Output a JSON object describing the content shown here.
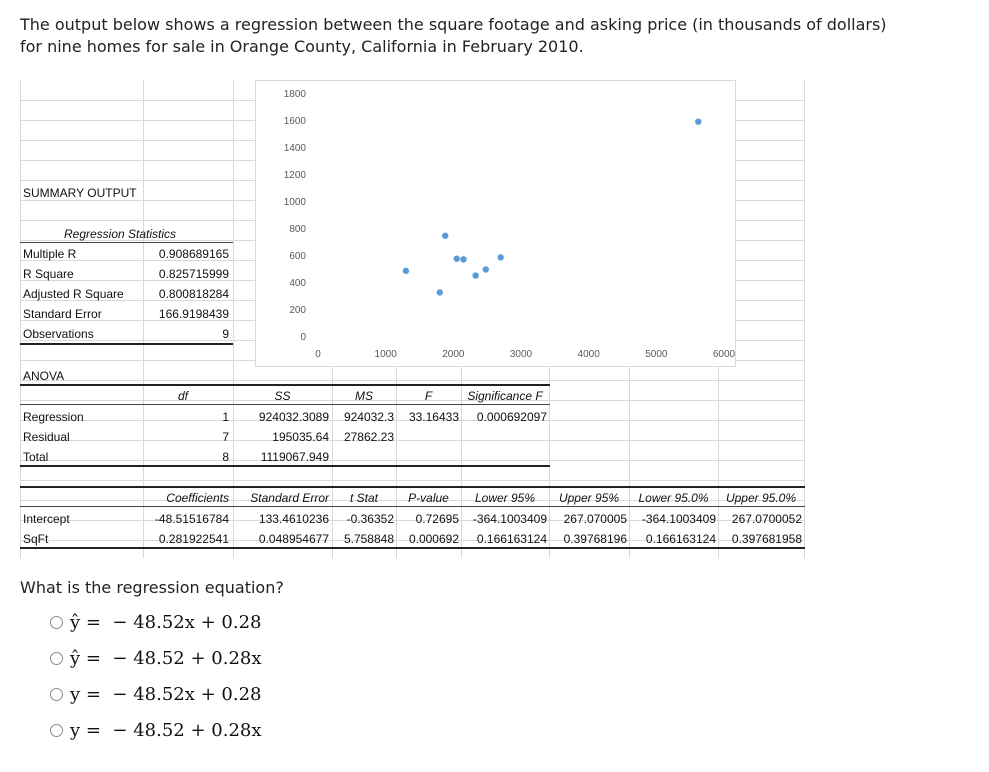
{
  "intro": {
    "line1": "The output below shows a regression between the square footage and asking price (in thousands of dollars)",
    "line2": "for nine homes for sale in Orange County, California in February 2010."
  },
  "summary": {
    "title": "SUMMARY OUTPUT",
    "regstats_header": "Regression Statistics",
    "rows": [
      {
        "label": "Multiple R",
        "value": "0.908689165"
      },
      {
        "label": "R Square",
        "value": "0.825715999"
      },
      {
        "label": "Adjusted R Square",
        "value": "0.800818284"
      },
      {
        "label": "Standard Error",
        "value": "166.9198439"
      },
      {
        "label": "Observations",
        "value": "9"
      }
    ]
  },
  "anova": {
    "title": "ANOVA",
    "headers": [
      "df",
      "SS",
      "MS",
      "F",
      "Significance F"
    ],
    "rows": [
      {
        "label": "Regression",
        "df": "1",
        "ss": "924032.3089",
        "ms": "924032.3",
        "f": "33.16433",
        "sig": "0.000692097"
      },
      {
        "label": "Residual",
        "df": "7",
        "ss": "195035.64",
        "ms": "27862.23",
        "f": "",
        "sig": ""
      },
      {
        "label": "Total",
        "df": "8",
        "ss": "1119067.949",
        "ms": "",
        "f": "",
        "sig": ""
      }
    ]
  },
  "coef": {
    "headers": [
      "Coefficients",
      "Standard Error",
      "t Stat",
      "P-value",
      "Lower 95%",
      "Upper 95%",
      "Lower 95.0%",
      "Upper 95.0%"
    ],
    "rows": [
      {
        "label": "Intercept",
        "values": [
          "-48.51516784",
          "133.4610236",
          "-0.36352",
          "0.72695",
          "-364.1003409",
          "267.070005",
          "-364.1003409",
          "267.0700052"
        ]
      },
      {
        "label": "SqFt",
        "values": [
          "0.281922541",
          "0.048954677",
          "5.758848",
          "0.000692",
          "0.166163124",
          "0.39768196",
          "0.166163124",
          "0.397681958"
        ]
      }
    ]
  },
  "chart_data": {
    "type": "scatter",
    "title": "",
    "xlabel": "",
    "ylabel": "",
    "xlim": [
      0,
      6000
    ],
    "ylim": [
      0,
      1800
    ],
    "x_ticks": [
      "0",
      "1000",
      "2000",
      "3000",
      "4000",
      "5000",
      "6000"
    ],
    "y_ticks": [
      "0",
      "200",
      "400",
      "600",
      "800",
      "1000",
      "1200",
      "1400",
      "1600",
      "1800"
    ],
    "grid": false,
    "color": "#5b9bd5",
    "points": [
      {
        "x": 1300,
        "y": 490
      },
      {
        "x": 1800,
        "y": 330
      },
      {
        "x": 1880,
        "y": 750
      },
      {
        "x": 2050,
        "y": 580
      },
      {
        "x": 2150,
        "y": 575
      },
      {
        "x": 2330,
        "y": 455
      },
      {
        "x": 2480,
        "y": 500
      },
      {
        "x": 2700,
        "y": 590
      },
      {
        "x": 5620,
        "y": 1595
      }
    ]
  },
  "question": {
    "text": "What is the regression equation?",
    "options": [
      "ŷ =  − 48.52x + 0.28",
      "ŷ =  − 48.52 + 0.28x",
      "y =  − 48.52x + 0.28",
      "y =  − 48.52 + 0.28x"
    ]
  }
}
